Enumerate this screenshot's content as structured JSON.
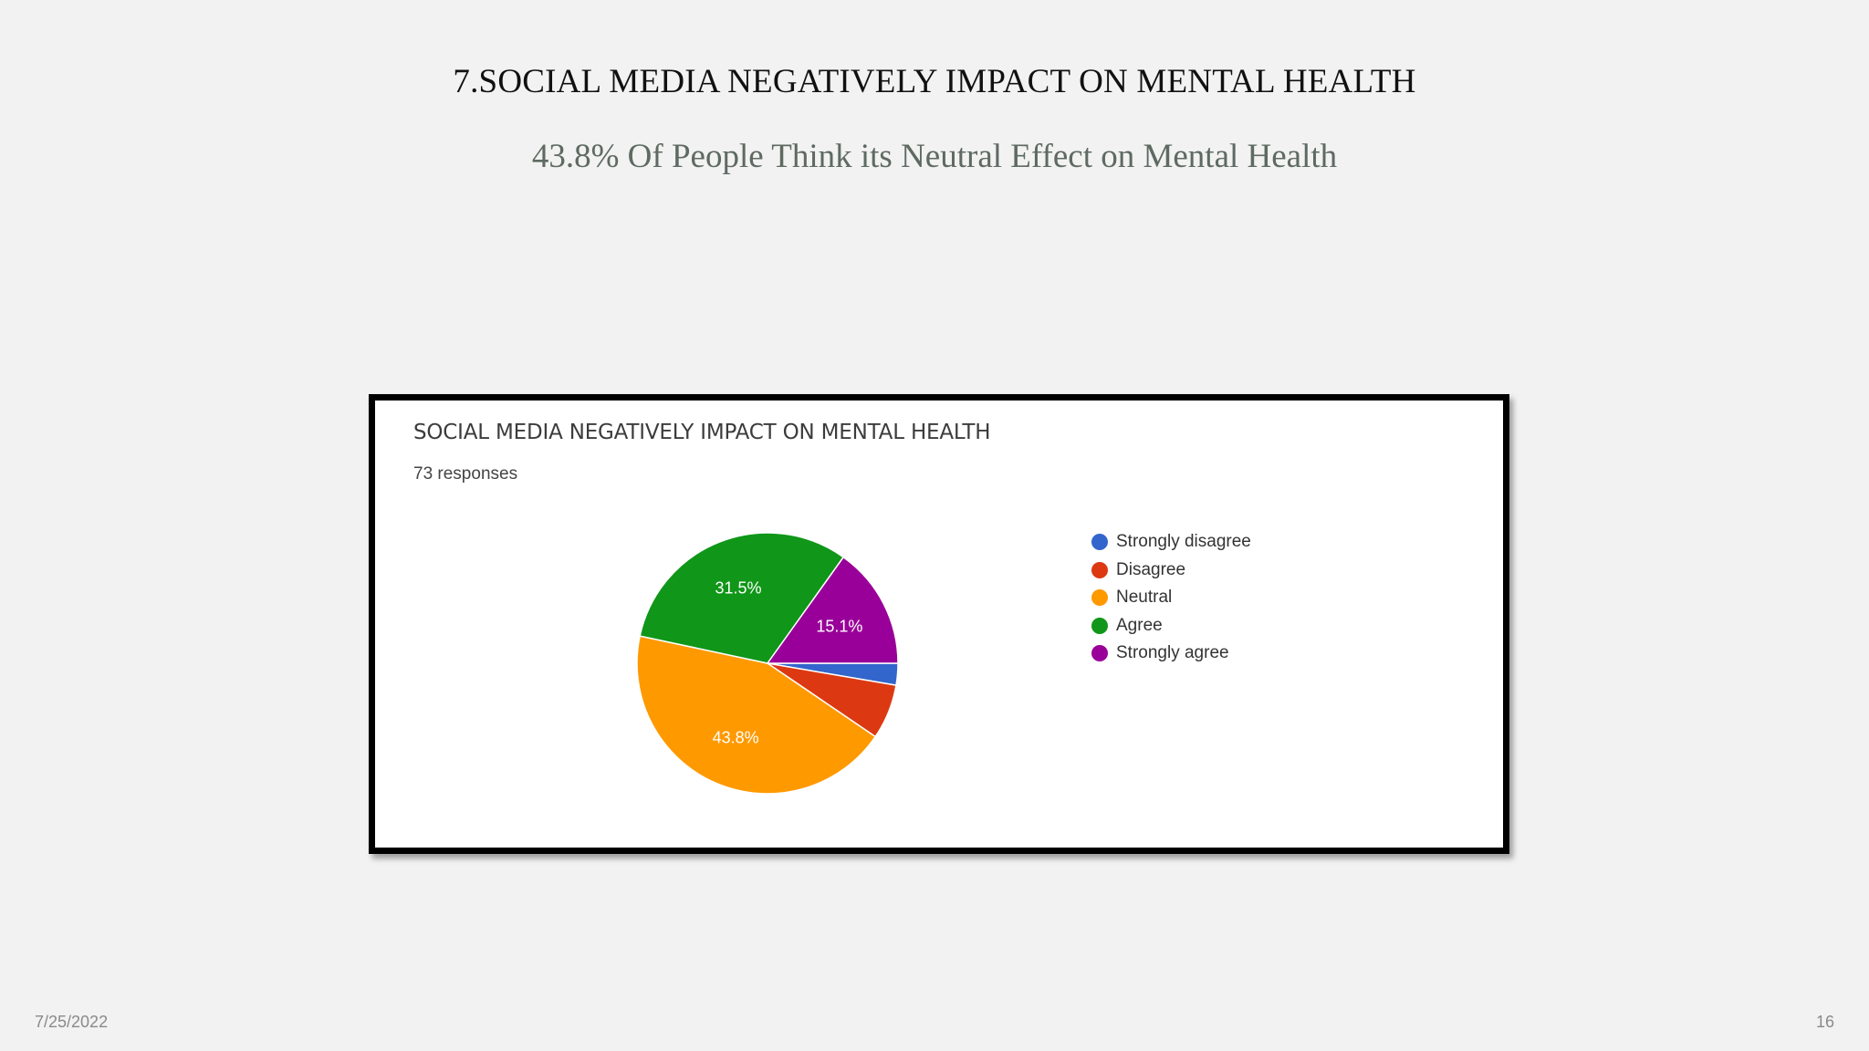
{
  "slide": {
    "title": "7.SOCIAL MEDIA NEGATIVELY IMPACT ON MENTAL HEALTH",
    "subtitle": "43.8% Of People Think its Neutral Effect on Mental Health",
    "date": "7/25/2022",
    "page_number": "16"
  },
  "chart_data": {
    "type": "pie",
    "title": "SOCIAL MEDIA NEGATIVELY IMPACT ON MENTAL HEALTH",
    "subtitle": "73 responses",
    "legend_position": "right",
    "slices": [
      {
        "label": "Strongly disagree",
        "value": 2.7,
        "color": "#3366cc",
        "data_label": ""
      },
      {
        "label": "Disagree",
        "value": 6.8,
        "color": "#dc3912",
        "data_label": ""
      },
      {
        "label": "Neutral",
        "value": 43.8,
        "color": "#ff9900",
        "data_label": "43.8%"
      },
      {
        "label": "Agree",
        "value": 31.5,
        "color": "#109618",
        "data_label": "31.5%"
      },
      {
        "label": "Strongly agree",
        "value": 15.1,
        "color": "#990099",
        "data_label": "15.1%"
      }
    ]
  }
}
